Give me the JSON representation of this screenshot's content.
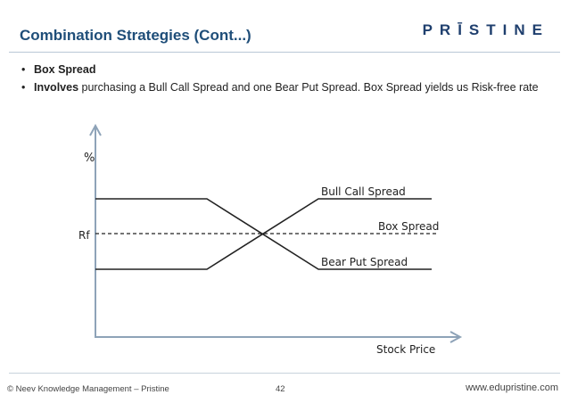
{
  "slide": {
    "title": "Combination Strategies (Cont...)",
    "logo": "PRĪSTINE"
  },
  "bullets": [
    {
      "bold": "Box Spread",
      "rest": ""
    },
    {
      "bold": "Involves",
      "rest": " purchasing a Bull Call Spread and one Bear Put Spread. Box Spread yields us Risk-free rate"
    }
  ],
  "diagram": {
    "y_axis_label": "%",
    "x_axis_label": "Stock Price",
    "rf_label": "Rf",
    "lines": [
      {
        "name": "Bull Call Spread"
      },
      {
        "name": "Box Spread"
      },
      {
        "name": "Bear Put Spread"
      }
    ],
    "colors": {
      "axis": "#8ea3b8",
      "line": "#222222"
    }
  },
  "footer": {
    "left": "© Neev Knowledge Management – Pristine",
    "page": "42",
    "right": "www.edupristine.com"
  }
}
